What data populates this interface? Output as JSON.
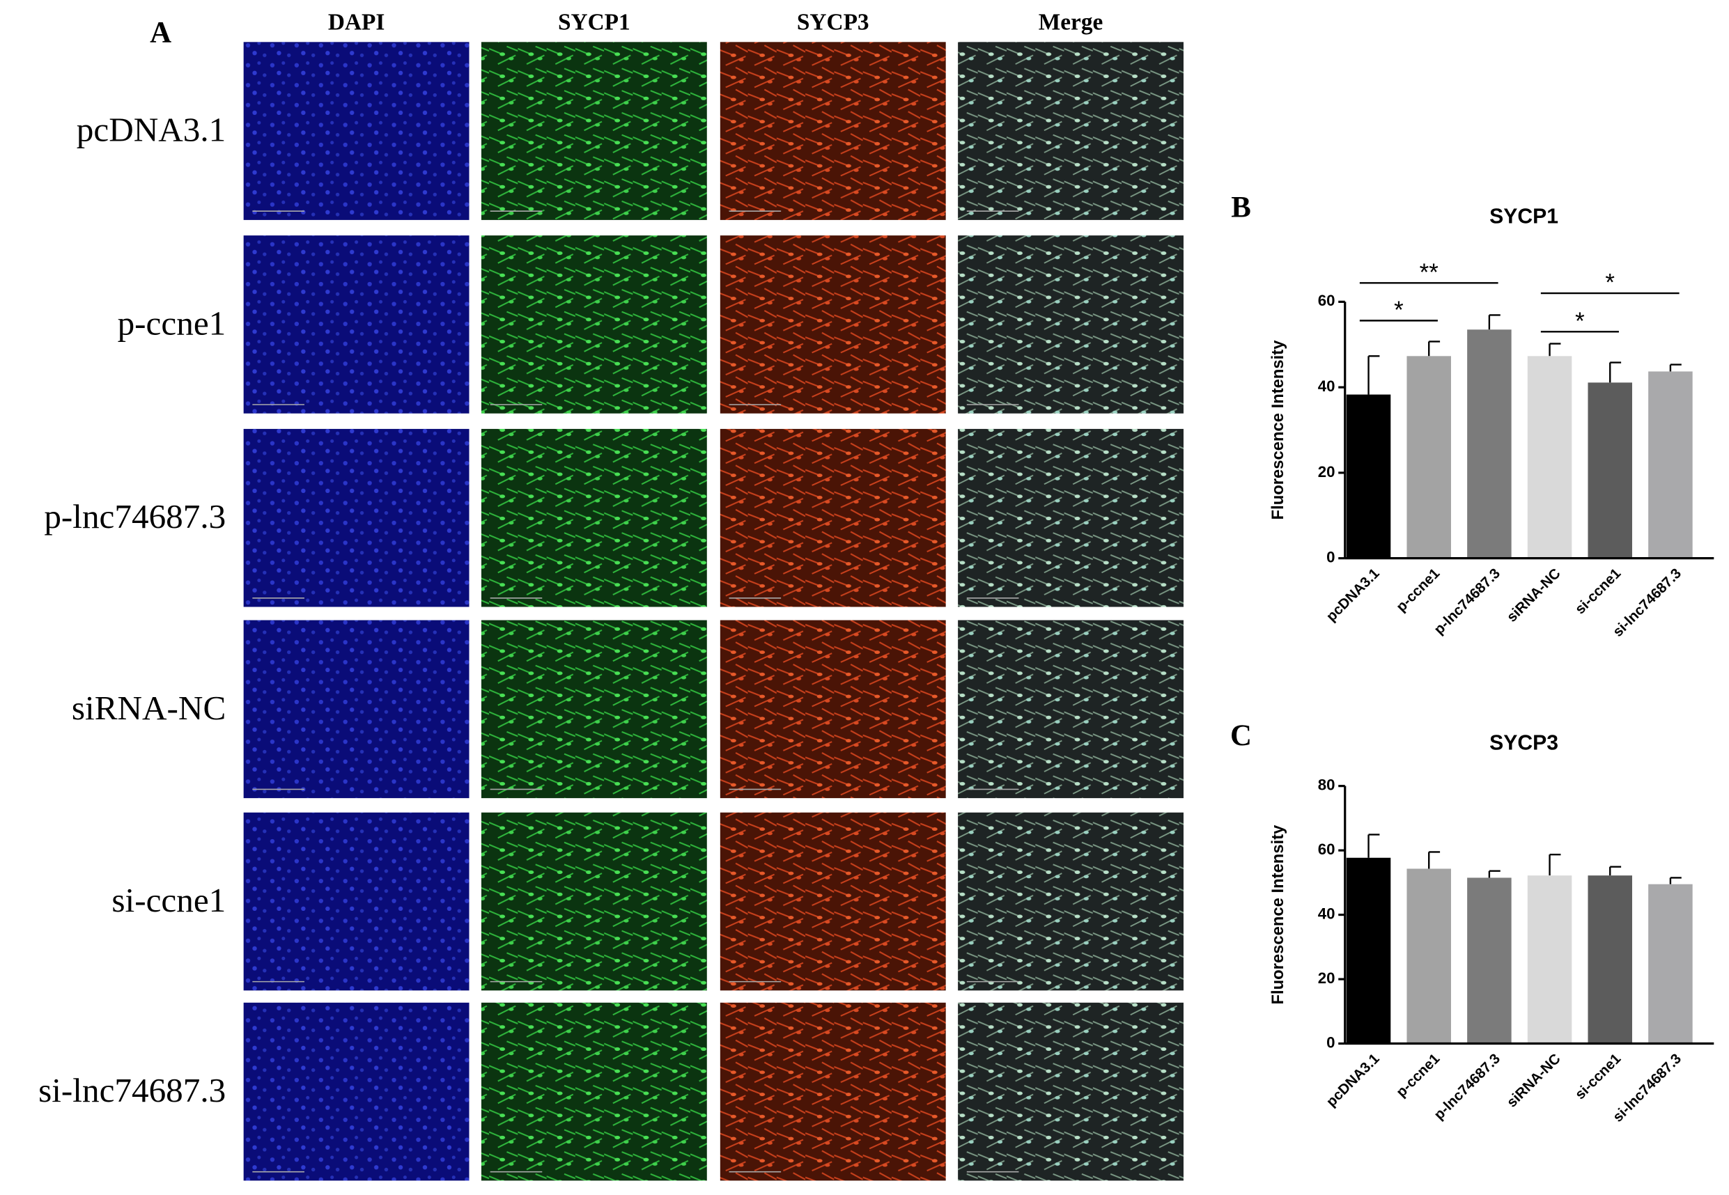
{
  "panel_a": {
    "label": "A",
    "columns": [
      "DAPI",
      "SYCP1",
      "SYCP3",
      "Merge"
    ],
    "rows": [
      "pcDNA3.1",
      "p-ccne1",
      "p-lnc74687.3",
      "siRNA-NC",
      "si-ccne1",
      "si-lnc74687.3"
    ]
  },
  "chart_data": [
    {
      "type": "bar",
      "panel": "B",
      "title": "SYCP1",
      "y_label": "Fluorescence Intensity",
      "categories": [
        "pcDNA3.1",
        "p-ccne1",
        "p-lnc74687.3",
        "siRNA-NC",
        "si-ccne1",
        "si-lnc74687.3"
      ],
      "values": [
        38.3,
        47.3,
        53.5,
        47.3,
        41.1,
        43.7
      ],
      "errors": [
        9,
        3.4,
        3.4,
        2.9,
        4.7,
        1.6
      ],
      "colors": [
        "#000000",
        "#a3a3a3",
        "#7b7b7b",
        "#d9d9d9",
        "#5c5c5c",
        "#a9a9ab"
      ],
      "ylim": [
        0,
        60
      ],
      "yticks": [
        0,
        20,
        40,
        60
      ],
      "annotations": [
        {
          "text": "*",
          "between": [
            0,
            1
          ],
          "y": 55.6
        },
        {
          "text": "**",
          "between": [
            0,
            2
          ],
          "y": 64.4
        },
        {
          "text": "*",
          "between": [
            3,
            4
          ],
          "y": 53.0
        },
        {
          "text": "*",
          "between": [
            3,
            5
          ],
          "y": 62.0
        }
      ]
    },
    {
      "type": "bar",
      "panel": "C",
      "title": "SYCP3",
      "y_label": "Fluorescence Intensity",
      "categories": [
        "pcDNA3.1",
        "p-ccne1",
        "p-lnc74687.3",
        "siRNA-NC",
        "si-ccne1",
        "si-lnc74687.3"
      ],
      "values": [
        57.7,
        54.3,
        51.5,
        52.2,
        52.2,
        49.5
      ],
      "errors": [
        7.2,
        5.2,
        2.1,
        6.5,
        2.7,
        2
      ],
      "colors": [
        "#000000",
        "#a3a3a3",
        "#7b7b7b",
        "#d9d9d9",
        "#5c5c5c",
        "#a9a9ab"
      ],
      "ylim": [
        0,
        80
      ],
      "yticks": [
        0,
        20,
        40,
        60,
        80
      ]
    }
  ]
}
